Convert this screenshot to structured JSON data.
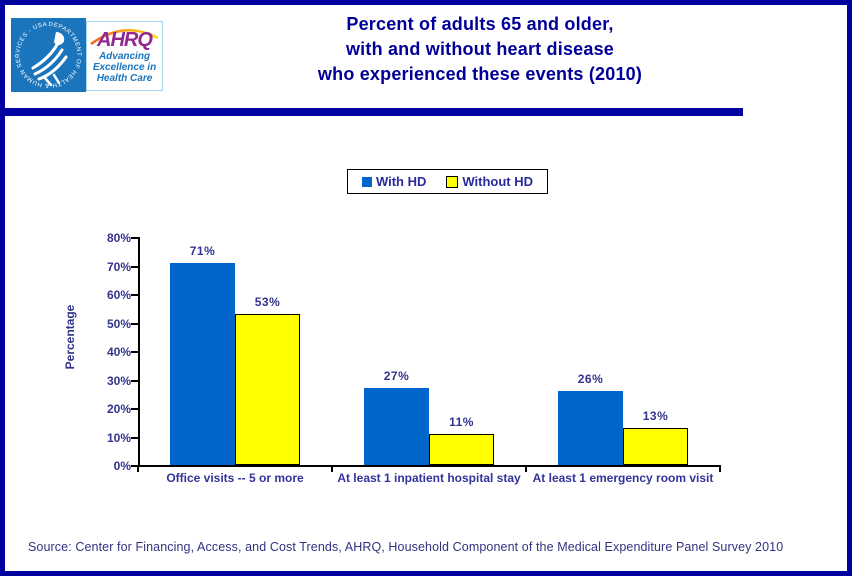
{
  "header": {
    "title_lines": [
      "Percent of adults 65 and older,",
      "with and without heart disease",
      "who experienced these events (2010)"
    ],
    "logo": {
      "hhs_ring_text": "DEPARTMENT OF HEALTH & HUMAN SERVICES - USA",
      "ahrq_acronym": "AHRQ",
      "ahrq_tagline": "Advancing Excellence in Health Care"
    }
  },
  "chart_data": {
    "type": "bar",
    "title": "Percent of adults 65 and older, with and without heart disease who experienced these events (2010)",
    "categories": [
      "Office visits -- 5 or more",
      "At least 1 inpatient hospital stay",
      "At least 1 emergency room visit"
    ],
    "series": [
      {
        "name": "With HD",
        "color": "#0066cc",
        "values": [
          71,
          27,
          26
        ]
      },
      {
        "name": "Without HD",
        "color": "#ffff00",
        "outline_color": "#000000",
        "values": [
          53,
          11,
          13
        ]
      }
    ],
    "xlabel": "",
    "ylabel": "Percentage",
    "ylim": [
      0,
      80
    ],
    "ytick_step": 10,
    "value_suffix": "%",
    "grid": false,
    "legend_position": "top-center"
  },
  "footer": {
    "source": "Source: Center for Financing, Access, and Cost Trends, AHRQ, Household Component of the Medical Expenditure Panel Survey 2010"
  },
  "colors": {
    "frame_border": "#0101a0",
    "title_text": "#000099",
    "chart_text": "#33338f",
    "bar_with_hd": "#0066cc",
    "bar_without_hd": "#ffff00",
    "hhs_blue": "#1b75bc",
    "ahrq_purple": "#92278f",
    "ahrq_tagline_blue": "#1b75bc"
  }
}
